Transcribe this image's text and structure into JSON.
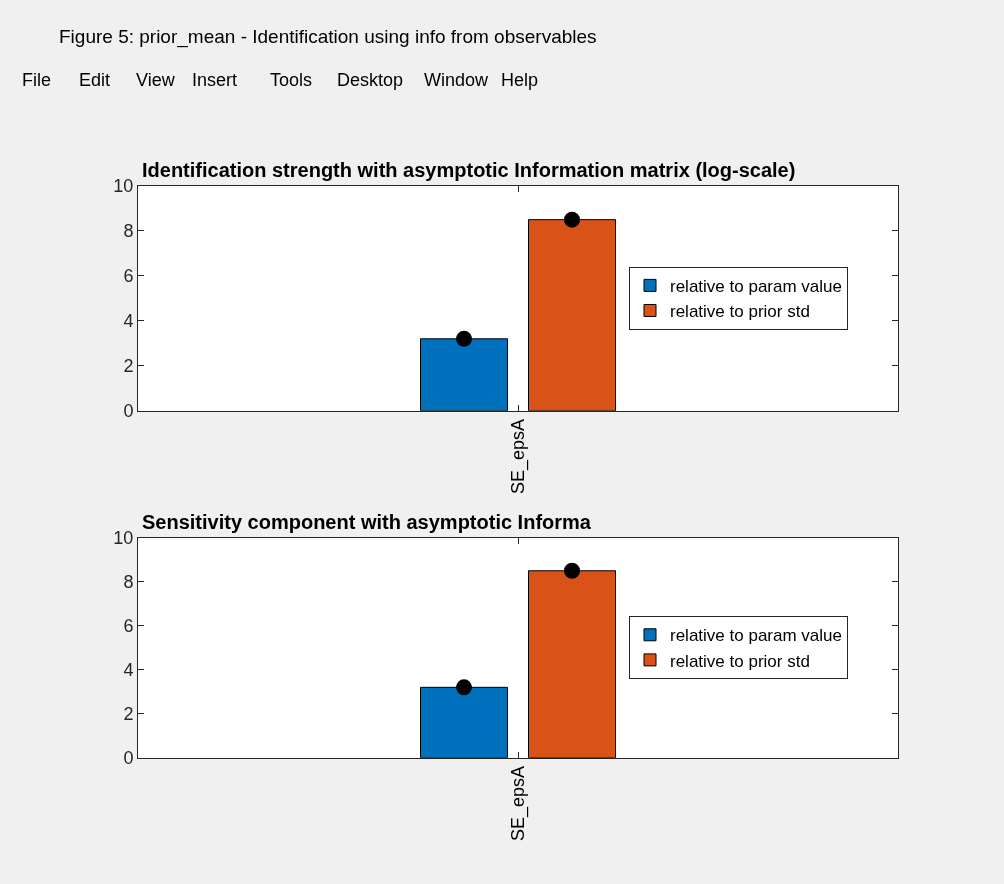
{
  "chart_data": [
    {
      "type": "other",
      "title": "Figure 5: prior_mean - Identification using info from observables",
      "annotations": [
        "File",
        "Edit",
        "View",
        "Insert",
        "Tools",
        "Desktop",
        "Window",
        "Help"
      ]
    },
    {
      "type": "bar",
      "title": "Identification strength with asymptotic Information matrix (log-scale)",
      "categories": [
        "SE_epsA"
      ],
      "series": [
        {
          "name": "relative to param value",
          "color": "#0072bd",
          "values": [
            3.2
          ]
        },
        {
          "name": "relative to prior std",
          "color": "#d95319",
          "values": [
            8.5
          ]
        },
        {
          "type": "scatter",
          "color": "#000000",
          "x": [
            "SE_epsA"
          ],
          "values": [
            3.2
          ]
        },
        {
          "type": "scatter",
          "color": "#000000",
          "x": [
            "SE_epsA"
          ],
          "values": [
            8.5
          ]
        }
      ],
      "ylim": [
        0,
        10
      ],
      "yticks": [
        0,
        2,
        4,
        6,
        8,
        10
      ],
      "legend": "right",
      "marker": "circle"
    },
    {
      "type": "bar",
      "title": "Sensitivity component with asymptotic Informa",
      "categories": [
        "SE_epsA"
      ],
      "series": [
        {
          "name": "relative to param value",
          "color": "#0072bd",
          "values": [
            3.2
          ]
        },
        {
          "name": "relative to prior std",
          "color": "#d95319",
          "values": [
            8.5
          ]
        },
        {
          "type": "scatter",
          "color": "#000000",
          "x": [
            "SE_epsA"
          ],
          "values": [
            3.2
          ]
        },
        {
          "type": "scatter",
          "color": "#000000",
          "x": [
            "SE_epsA"
          ],
          "values": [
            8.5
          ]
        }
      ],
      "ylim": [
        0,
        10
      ],
      "yticks": [
        0,
        2,
        4,
        6,
        8,
        10
      ],
      "legend": "right",
      "marker": "circle"
    }
  ]
}
